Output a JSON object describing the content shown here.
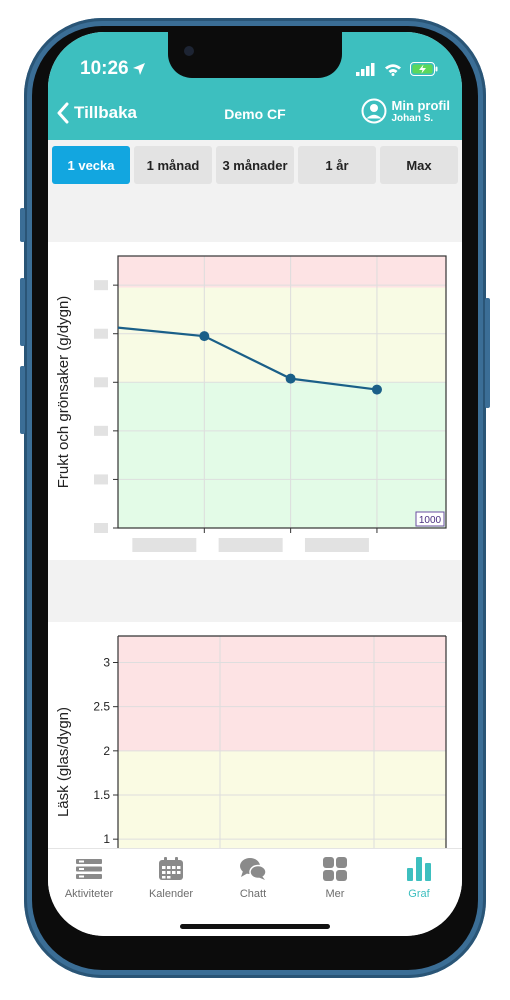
{
  "status": {
    "time": "10:26"
  },
  "header": {
    "back_label": "Tillbaka",
    "title": "Demo CF",
    "profile_name": "Min profil",
    "profile_user": "Johan S."
  },
  "periods": [
    {
      "label": "1 vecka",
      "active": true
    },
    {
      "label": "1 månad",
      "active": false
    },
    {
      "label": "3 månader",
      "active": false
    },
    {
      "label": "1 år",
      "active": false
    },
    {
      "label": "Max",
      "active": false
    }
  ],
  "chart_data": [
    {
      "type": "line",
      "ylabel": "Frukt och grönsaker (g/dygn)",
      "points": [
        {
          "x": 0,
          "y": 825
        },
        {
          "x": 1,
          "y": 790
        },
        {
          "x": 2,
          "y": 615
        },
        {
          "x": 3,
          "y": 570
        }
      ],
      "xlim": [
        0,
        3.8
      ],
      "ylim": [
        0,
        1120
      ],
      "bands": [
        {
          "from": 0,
          "to": 600,
          "color": "#e3fbe7"
        },
        {
          "from": 600,
          "to": 990,
          "color": "#f8fbe4"
        },
        {
          "from": 990,
          "to": 1120,
          "color": "#fde3e4"
        }
      ],
      "badge": "1000",
      "line_color": "#1a5f88"
    },
    {
      "type": "line",
      "ylabel": "Läsk (glas/dygn)",
      "yticks": [
        "1",
        "1.5",
        "2",
        "2.5",
        "3"
      ],
      "ylim": [
        0.9,
        3.3
      ],
      "bands": [
        {
          "from": 0.9,
          "to": 2,
          "color": "#fafbe3"
        },
        {
          "from": 2,
          "to": 3.3,
          "color": "#fde3e4"
        }
      ]
    }
  ],
  "tabs": [
    {
      "label": "Aktiviteter",
      "icon": "activities-icon",
      "active": false
    },
    {
      "label": "Kalender",
      "icon": "calendar-icon",
      "active": false
    },
    {
      "label": "Chatt",
      "icon": "chat-icon",
      "active": false
    },
    {
      "label": "Mer",
      "icon": "grid-icon",
      "active": false
    },
    {
      "label": "Graf",
      "icon": "bar-chart-icon",
      "active": true
    }
  ],
  "colors": {
    "accent": "#3dbfbf",
    "segment_active": "#12a6e0"
  }
}
